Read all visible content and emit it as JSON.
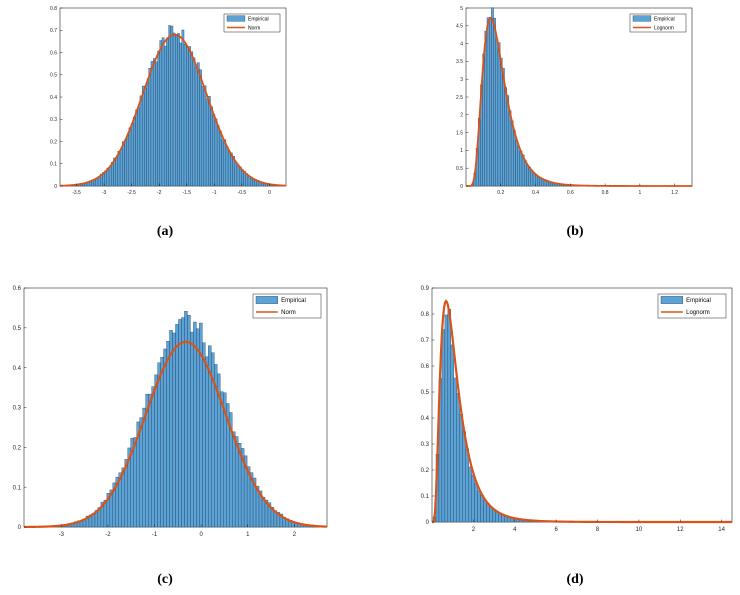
{
  "captions": [
    "(a)",
    "(b)",
    "(c)",
    "(d)"
  ],
  "colors": {
    "bar_fill": "#5ba3d6",
    "bar_stroke": "#1f3a55",
    "fit_line": "#d95319",
    "axis": "#262626"
  },
  "chart_data": [
    {
      "type": "bar",
      "panel": "a",
      "title": "",
      "xlabel": "",
      "ylabel": "",
      "xlim": [
        -3.8,
        0.3
      ],
      "ylim": [
        0,
        0.8
      ],
      "xticks": [
        "-3.5",
        "-3",
        "-2.5",
        "-2",
        "-1.5",
        "-1",
        "-0.5",
        "0"
      ],
      "yticks": [
        "0",
        "0.1",
        "0.2",
        "0.3",
        "0.4",
        "0.5",
        "0.6",
        "0.7",
        "0.8"
      ],
      "grid": false,
      "legend_position": "top-right",
      "series": [
        {
          "name": "Empirical",
          "kind": "histogram",
          "dist": "norm",
          "mu": -1.72,
          "sigma": 0.58,
          "n_bins": 100,
          "range": [
            -3.75,
            0.25
          ],
          "peak": 0.69
        },
        {
          "name": "Norm",
          "kind": "fit-line",
          "dist": "norm",
          "mu": -1.72,
          "sigma": 0.58,
          "peak": 0.68
        }
      ]
    },
    {
      "type": "bar",
      "panel": "b",
      "title": "",
      "xlabel": "",
      "ylabel": "",
      "xlim": [
        0,
        1.3
      ],
      "ylim": [
        0,
        5
      ],
      "xticks": [
        "0.2",
        "0.4",
        "0.6",
        "0.8",
        "1",
        "1.2"
      ],
      "yticks": [
        "0",
        "0.5",
        "1",
        "1.5",
        "2",
        "2.5",
        "3",
        "3.5",
        "4",
        "4.5",
        "5"
      ],
      "grid": false,
      "legend_position": "top-right",
      "series": [
        {
          "name": "Empirical",
          "kind": "histogram",
          "dist": "lognorm",
          "mu": -1.75,
          "sigma": 0.45,
          "n_bins": 100,
          "range": [
            0.02,
            1.28
          ],
          "peak": 4.82
        },
        {
          "name": "Lognorm",
          "kind": "fit-line",
          "dist": "lognorm",
          "mu": -1.75,
          "sigma": 0.45,
          "peak": 4.72
        }
      ]
    },
    {
      "type": "bar",
      "panel": "c",
      "title": "",
      "xlabel": "",
      "ylabel": "",
      "xlim": [
        -3.8,
        2.7
      ],
      "ylim": [
        0,
        0.6
      ],
      "xticks": [
        "-3",
        "-2",
        "-1",
        "0",
        "1",
        "2"
      ],
      "yticks": [
        "0",
        "0.1",
        "0.2",
        "0.3",
        "0.4",
        "0.5",
        "0.6"
      ],
      "grid": false,
      "legend_position": "top-right",
      "series": [
        {
          "name": "Empirical",
          "kind": "histogram",
          "dist": "norm",
          "mu": -0.33,
          "sigma": 0.86,
          "n_bins": 100,
          "range": [
            -3.75,
            2.65
          ],
          "peak": 0.52
        },
        {
          "name": "Norm",
          "kind": "fit-line",
          "dist": "norm",
          "mu": -0.33,
          "sigma": 0.86,
          "peak": 0.465
        }
      ]
    },
    {
      "type": "bar",
      "panel": "d",
      "title": "",
      "xlabel": "",
      "ylabel": "",
      "xlim": [
        0,
        14.5
      ],
      "ylim": [
        0,
        0.9
      ],
      "xticks": [
        "2",
        "4",
        "6",
        "8",
        "10",
        "12",
        "14"
      ],
      "yticks": [
        "0",
        "0.1",
        "0.2",
        "0.3",
        "0.4",
        "0.5",
        "0.6",
        "0.7",
        "0.8",
        "0.9"
      ],
      "grid": false,
      "legend_position": "top-right",
      "series": [
        {
          "name": "Empirical",
          "kind": "histogram",
          "dist": "lognorm",
          "mu": 0.0,
          "sigma": 0.62,
          "n_bins": 100,
          "range": [
            0.05,
            14.4
          ],
          "peak": 0.82
        },
        {
          "name": "Lognorm",
          "kind": "fit-line",
          "dist": "lognorm",
          "mu": 0.0,
          "sigma": 0.62,
          "peak": 0.85
        }
      ]
    }
  ]
}
